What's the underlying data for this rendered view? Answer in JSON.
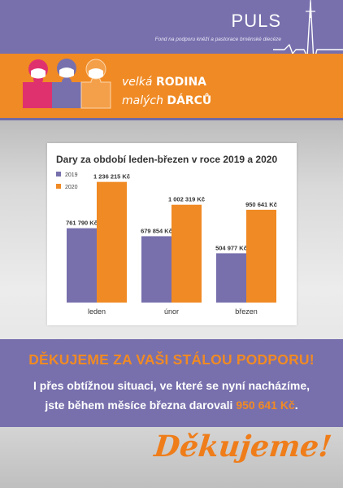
{
  "header": {
    "brand": "PULS",
    "tagline": "Fond na podporu kněží a pastorace brněnské diecéze"
  },
  "campaign": {
    "line1_light": "velká",
    "line1_bold": "RODINA",
    "line2_light": "malých",
    "line2_bold": "DÁRCŮ"
  },
  "colors": {
    "purple": "#7770ad",
    "orange": "#f08a24",
    "series_2019": "#7770ad",
    "series_2020": "#f08a24"
  },
  "chart_data": {
    "type": "bar",
    "title": "Dary za období leden-březen v roce 2019 a 2020",
    "categories": [
      "leden",
      "únor",
      "březen"
    ],
    "series": [
      {
        "name": "2019",
        "values": [
          761790,
          679854,
          504977
        ],
        "labels": [
          "761 790 Kč",
          "679 854 Kč",
          "504 977 Kč"
        ]
      },
      {
        "name": "2020",
        "values": [
          1236215,
          1002319,
          950641
        ],
        "labels": [
          "1 236 215 Kč",
          "1 002 319 Kč",
          "950 641 Kč"
        ]
      }
    ],
    "ylim": [
      0,
      1400000
    ],
    "legend": "top-left",
    "grid": false
  },
  "thanks": {
    "heading": "DĚKUJEME ZA VAŠI STÁLOU PODPORU!",
    "line1": "I přes obtížnou situaci, ve které se nyní nacházíme,",
    "line2_prefix": "jste během měsíce března darovali",
    "amount": "950 641 Kč",
    "line2_suffix": "."
  },
  "signoff": "Děkujeme!"
}
